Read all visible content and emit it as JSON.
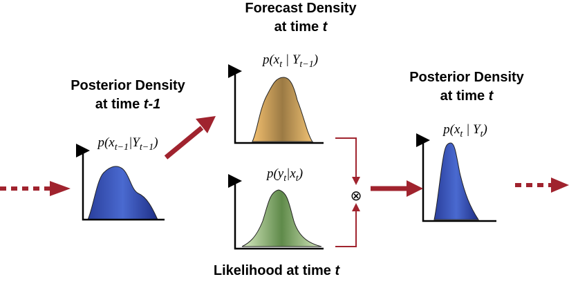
{
  "nodes": [
    {
      "title": [
        "Posterior Density",
        "at time "
      ],
      "time": "t-1",
      "formula": [
        "p(x",
        "t−1",
        "|Y",
        "t−1",
        ")"
      ]
    },
    {
      "title": [
        "Forecast Density",
        "at time "
      ],
      "time": "t",
      "formula": [
        "p(x",
        "t",
        " | Y",
        "t−1",
        ")"
      ]
    },
    {
      "formula": [
        "p(y",
        "t",
        "|x",
        "t",
        ")"
      ],
      "caption": "Likelihood at time ",
      "time": "t"
    },
    {
      "title": [
        "Posterior Density",
        "at time "
      ],
      "time": "t",
      "formula": [
        "p(x",
        "t",
        " | Y",
        "t",
        ")"
      ]
    }
  ],
  "operator": "⊗"
}
